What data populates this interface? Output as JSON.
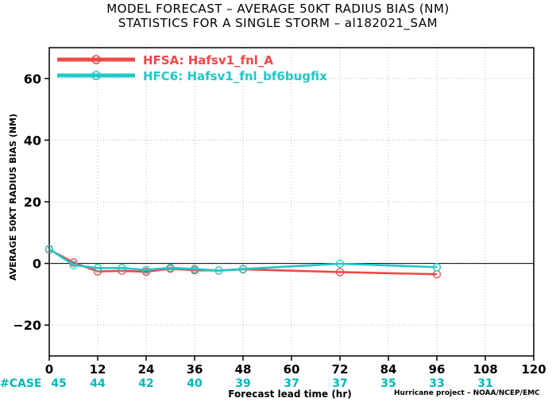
{
  "title_line1": "MODEL FORECAST – AVERAGE 50KT RADIUS BIAS (NM)",
  "title_line2": "STATISTICS FOR A SINGLE STORM – al182021_SAM",
  "credit": "Hurricane project – NOAA/NCEP/EMC",
  "case_label": "#CASE",
  "case_color": "#00b8b8",
  "chart_data": {
    "type": "line",
    "title": "MODEL FORECAST – AVERAGE 50KT RADIUS BIAS (NM)",
    "subtitle": "STATISTICS FOR A SINGLE STORM – al182021_SAM",
    "xlabel": "Forecast lead time (hr)",
    "ylabel": "AVERAGE 50KT RADIUS BIAS (NM)",
    "xlim": [
      0,
      120
    ],
    "ylim": [
      -30,
      70
    ],
    "xticks": [
      0,
      12,
      24,
      36,
      48,
      60,
      72,
      84,
      96,
      108,
      120
    ],
    "yticks": [
      -20,
      0,
      20,
      40,
      60
    ],
    "grid": true,
    "legend_position": "top-left",
    "zero_line": true,
    "series": [
      {
        "name": "HFSA: Hafsv1_fnl_A",
        "color": "#f04848",
        "x": [
          0,
          6,
          12,
          18,
          24,
          30,
          36,
          42,
          48,
          72,
          96
        ],
        "y": [
          4.5,
          0.3,
          -2.6,
          -2.4,
          -2.7,
          -1.7,
          -2.2,
          -2.3,
          -1.9,
          -2.8,
          -3.5
        ]
      },
      {
        "name": "HFC6: Hafsv1_fnl_bf6bugfix",
        "color": "#20c8c8",
        "x": [
          0,
          6,
          12,
          18,
          24,
          30,
          36,
          42,
          48,
          72,
          96
        ],
        "y": [
          4.7,
          -0.5,
          -1.5,
          -1.5,
          -2.1,
          -1.4,
          -1.8,
          -2.3,
          -1.8,
          -0.1,
          -1.2
        ]
      }
    ],
    "cases": [
      {
        "x": 0,
        "n": "45"
      },
      {
        "x": 12,
        "n": "44"
      },
      {
        "x": 24,
        "n": "42"
      },
      {
        "x": 36,
        "n": "40"
      },
      {
        "x": 48,
        "n": "39"
      },
      {
        "x": 60,
        "n": "37"
      },
      {
        "x": 72,
        "n": "37"
      },
      {
        "x": 84,
        "n": "35"
      },
      {
        "x": 96,
        "n": "33"
      },
      {
        "x": 108,
        "n": "31"
      }
    ]
  }
}
